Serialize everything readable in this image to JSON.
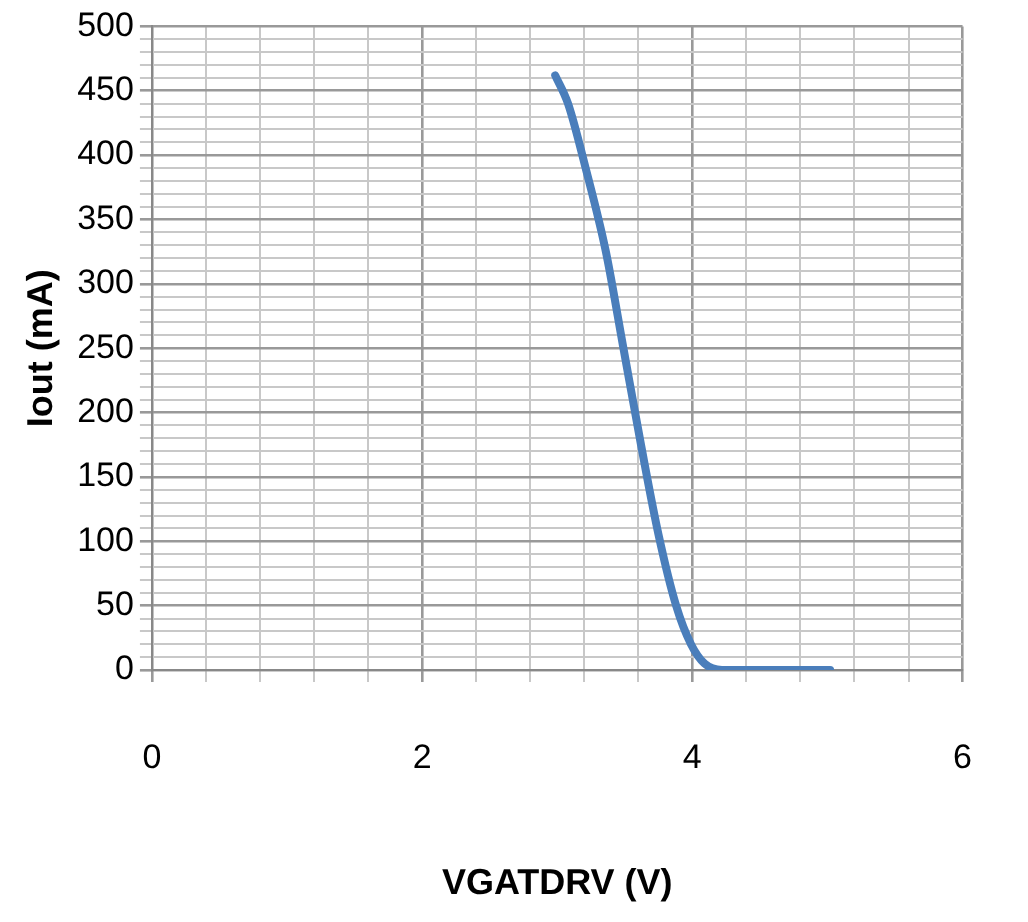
{
  "chart_data": {
    "type": "line",
    "xlabel": "VGATDRV (V)",
    "ylabel": "Iout (mA)",
    "series": [
      {
        "color": "#4a7ebb",
        "x": [
          2.985,
          3.08,
          3.21,
          3.36,
          3.49,
          3.62,
          3.75,
          3.88,
          3.99,
          4.09,
          4.22,
          5.02
        ],
        "values": [
          462,
          440,
          390,
          325,
          250,
          175,
          105,
          50,
          20,
          5,
          0,
          0
        ]
      }
    ],
    "xlim": [
      0,
      6
    ],
    "ylim": [
      0,
      500
    ],
    "xticks": [
      0,
      {
        "value": 0.4,
        "label": null
      },
      {
        "value": 0.8,
        "label": null
      },
      {
        "value": 1.2,
        "label": null
      },
      {
        "value": 1.6,
        "label": null
      },
      2,
      {
        "value": 2.4,
        "label": null
      },
      {
        "value": 2.8,
        "label": null
      },
      {
        "value": 3.2,
        "label": null
      },
      {
        "value": 3.6,
        "label": null
      },
      4,
      {
        "value": 4.4,
        "label": null
      },
      {
        "value": 4.8,
        "label": null
      },
      {
        "value": 5.2,
        "label": null
      },
      {
        "value": 5.6,
        "label": null
      },
      6
    ],
    "yticks": [
      0,
      {
        "value": 10,
        "label": null
      },
      {
        "value": 20,
        "label": null
      },
      {
        "value": 30,
        "label": null
      },
      {
        "value": 40,
        "label": null
      },
      50,
      {
        "value": 60,
        "label": null
      },
      {
        "value": 70,
        "label": null
      },
      {
        "value": 80,
        "label": null
      },
      {
        "value": 90,
        "label": null
      },
      100,
      {
        "value": 110,
        "label": null
      },
      {
        "value": 120,
        "label": null
      },
      {
        "value": 130,
        "label": null
      },
      {
        "value": 140,
        "label": null
      },
      150,
      {
        "value": 160,
        "label": null
      },
      {
        "value": 170,
        "label": null
      },
      {
        "value": 180,
        "label": null
      },
      {
        "value": 190,
        "label": null
      },
      200,
      {
        "value": 210,
        "label": null
      },
      {
        "value": 220,
        "label": null
      },
      {
        "value": 230,
        "label": null
      },
      {
        "value": 240,
        "label": null
      },
      250,
      {
        "value": 260,
        "label": null
      },
      {
        "value": 270,
        "label": null
      },
      {
        "value": 280,
        "label": null
      },
      {
        "value": 290,
        "label": null
      },
      300,
      {
        "value": 310,
        "label": null
      },
      {
        "value": 320,
        "label": null
      },
      {
        "value": 330,
        "label": null
      },
      {
        "value": 340,
        "label": null
      },
      350,
      {
        "value": 360,
        "label": null
      },
      {
        "value": 370,
        "label": null
      },
      {
        "value": 380,
        "label": null
      },
      {
        "value": 390,
        "label": null
      },
      400,
      {
        "value": 410,
        "label": null
      },
      {
        "value": 420,
        "label": null
      },
      {
        "value": 430,
        "label": null
      },
      {
        "value": 440,
        "label": null
      },
      450,
      {
        "value": 460,
        "label": null
      },
      {
        "value": 470,
        "label": null
      },
      {
        "value": 480,
        "label": null
      },
      {
        "value": 490,
        "label": null
      },
      500
    ],
    "grid": true,
    "legend": false,
    "marker": "none",
    "line_style": "solid"
  }
}
